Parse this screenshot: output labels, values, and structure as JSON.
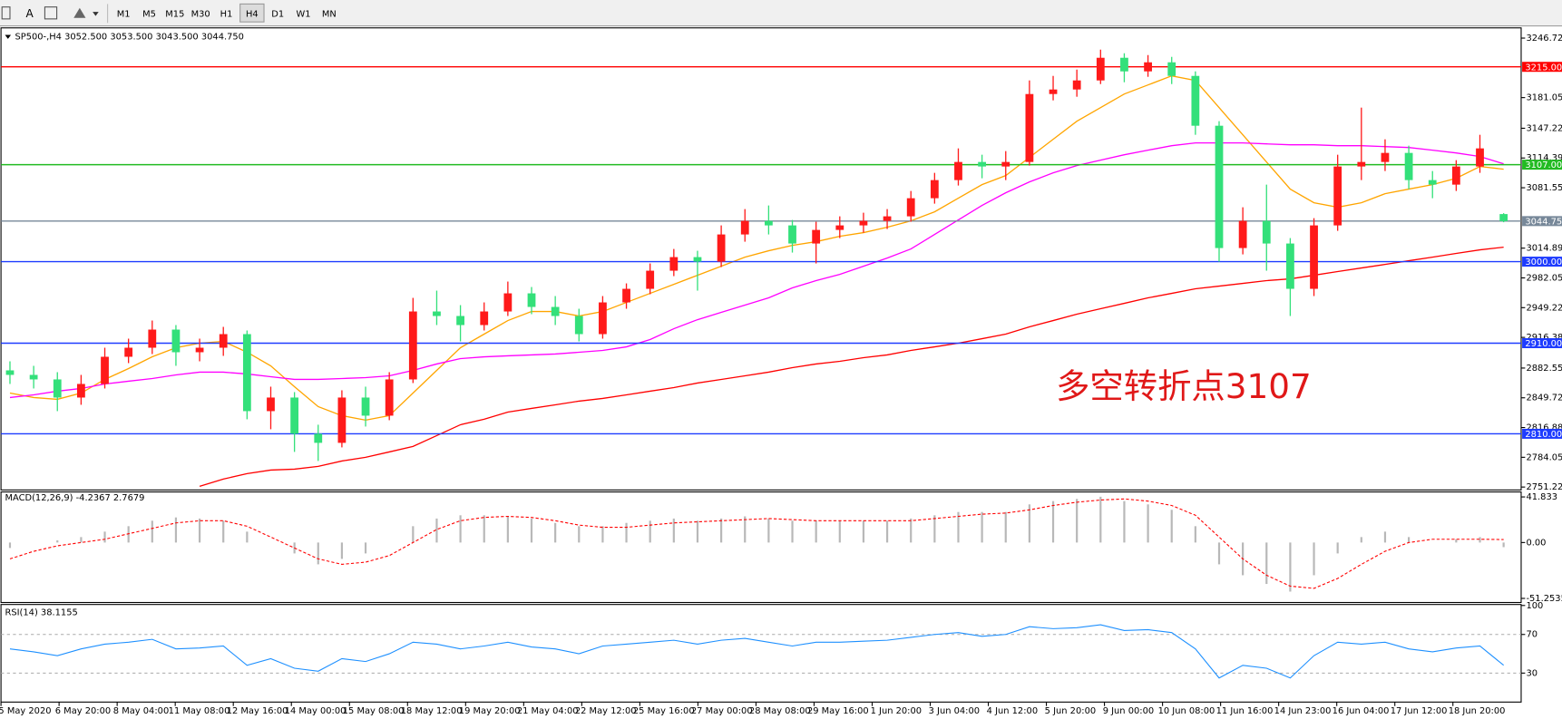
{
  "toolbar": {
    "timeframes": [
      "M1",
      "M5",
      "M15",
      "M30",
      "H1",
      "H4",
      "D1",
      "W1",
      "MN"
    ]
  },
  "chart_data": [
    {
      "type": "candlestick",
      "title": "SP500-,H4  3052.500 3053.500 3043.500 3044.750",
      "annotation": "多空转折点3107",
      "up_color": "#ff1a1a",
      "down_color": "#33e07a",
      "open": [
        2880,
        2875,
        2870,
        2850,
        2865,
        2895,
        2905,
        2925,
        2900,
        2905,
        2920,
        2835,
        2850,
        2810,
        2800,
        2850,
        2830,
        2870,
        2945,
        2940,
        2930,
        2945,
        2965,
        2950,
        2940,
        2920,
        2955,
        2970,
        2990,
        3005,
        3000,
        3030,
        3045,
        3040,
        3020,
        3035,
        3040,
        3045,
        3050,
        3070,
        3090,
        3110,
        3105,
        3110,
        3185,
        3190,
        3200,
        3225,
        3210,
        3220,
        3205,
        3150,
        3015,
        3045,
        3020,
        2970,
        3040,
        3105,
        3110,
        3120,
        3090,
        3085,
        3105,
        3052.5
      ],
      "high": [
        2890,
        2885,
        2878,
        2875,
        2905,
        2915,
        2935,
        2930,
        2915,
        2928,
        2924,
        2862,
        2856,
        2820,
        2858,
        2862,
        2878,
        2960,
        2968,
        2952,
        2955,
        2978,
        2972,
        2962,
        2948,
        2962,
        2976,
        2998,
        3014,
        3012,
        3040,
        3058,
        3062,
        3046,
        3044,
        3050,
        3054,
        3058,
        3078,
        3098,
        3125,
        3118,
        3122,
        3200,
        3205,
        3212,
        3234,
        3230,
        3228,
        3226,
        3210,
        3155,
        3060,
        3085,
        3026,
        3048,
        3118,
        3170,
        3135,
        3128,
        3100,
        3112,
        3140,
        3053.5
      ],
      "low": [
        2865,
        2860,
        2835,
        2842,
        2860,
        2888,
        2898,
        2885,
        2890,
        2896,
        2826,
        2815,
        2790,
        2780,
        2795,
        2818,
        2825,
        2866,
        2930,
        2912,
        2924,
        2940,
        2942,
        2930,
        2912,
        2915,
        2948,
        2964,
        2984,
        2968,
        2994,
        3022,
        3030,
        3010,
        2998,
        3026,
        3032,
        3036,
        3044,
        3064,
        3084,
        3092,
        3090,
        3106,
        3178,
        3182,
        3196,
        3198,
        3204,
        3196,
        3140,
        3000,
        3008,
        2990,
        2940,
        2962,
        3034,
        3090,
        3100,
        3080,
        3070,
        3078,
        3098,
        3043.5
      ],
      "close": [
        2875,
        2870,
        2850,
        2865,
        2895,
        2905,
        2925,
        2900,
        2905,
        2920,
        2835,
        2850,
        2810,
        2800,
        2850,
        2830,
        2870,
        2945,
        2940,
        2930,
        2945,
        2965,
        2950,
        2940,
        2920,
        2955,
        2970,
        2990,
        3005,
        3000,
        3030,
        3045,
        3040,
        3020,
        3035,
        3040,
        3045,
        3050,
        3070,
        3090,
        3110,
        3105,
        3110,
        3185,
        3190,
        3200,
        3225,
        3210,
        3220,
        3205,
        3150,
        3015,
        3045,
        3020,
        2970,
        3040,
        3105,
        3110,
        3120,
        3090,
        3085,
        3105,
        3125,
        3044.75
      ],
      "moving_averages": [
        {
          "color": "#ffa500",
          "values": [
            2855,
            2850,
            2848,
            2855,
            2870,
            2882,
            2895,
            2905,
            2910,
            2912,
            2900,
            2885,
            2862,
            2840,
            2830,
            2825,
            2830,
            2855,
            2880,
            2905,
            2920,
            2935,
            2945,
            2945,
            2940,
            2945,
            2955,
            2965,
            2975,
            2985,
            2995,
            3005,
            3012,
            3018,
            3022,
            3028,
            3032,
            3038,
            3045,
            3055,
            3070,
            3085,
            3095,
            3115,
            3135,
            3155,
            3170,
            3185,
            3195,
            3205,
            3200,
            3170,
            3140,
            3110,
            3080,
            3065,
            3060,
            3065,
            3075,
            3080,
            3085,
            3092,
            3105,
            3102
          ]
        },
        {
          "color": "#ff00ff",
          "values": [
            2850,
            2853,
            2857,
            2860,
            2865,
            2868,
            2871,
            2875,
            2878,
            2878,
            2876,
            2873,
            2870,
            2870,
            2871,
            2872,
            2874,
            2880,
            2887,
            2893,
            2895,
            2896,
            2897,
            2898,
            2900,
            2902,
            2906,
            2914,
            2926,
            2936,
            2944,
            2952,
            2960,
            2971,
            2979,
            2986,
            2995,
            3004,
            3014,
            3030,
            3046,
            3062,
            3076,
            3088,
            3098,
            3106,
            3112,
            3118,
            3123,
            3128,
            3131,
            3131,
            3131,
            3130,
            3129,
            3129,
            3128,
            3128,
            3127,
            3126,
            3123,
            3120,
            3116,
            3108
          ]
        },
        {
          "color": "#ff0000",
          "values": [
            null,
            null,
            null,
            null,
            null,
            null,
            null,
            null,
            2752,
            2760,
            2766,
            2770,
            2771,
            2774,
            2780,
            2784,
            2790,
            2796,
            2808,
            2820,
            2826,
            2834,
            2838,
            2842,
            2846,
            2849,
            2853,
            2857,
            2861,
            2866,
            2870,
            2874,
            2878,
            2883,
            2887,
            2890,
            2894,
            2897,
            2902,
            2906,
            2910,
            2915,
            2920,
            2928,
            2935,
            2942,
            2948,
            2954,
            2960,
            2965,
            2970,
            2973,
            2976,
            2979,
            2981,
            2985,
            2989,
            2993,
            2997,
            3001,
            3005,
            3009,
            3013,
            3016
          ]
        }
      ],
      "levels": [
        {
          "value": 3215,
          "label": "3215.000",
          "color": "#ff0000"
        },
        {
          "value": 3107,
          "label": "3107.000",
          "color": "#22bb22"
        },
        {
          "value": 3044.75,
          "label": "3044.750",
          "color": "#778899"
        },
        {
          "value": 3000,
          "label": "3000.000",
          "color": "#1e3cff"
        },
        {
          "value": 2910,
          "label": "2910.000",
          "color": "#1e3cff"
        },
        {
          "value": 2810,
          "label": "2810.000",
          "color": "#1e3cff"
        }
      ],
      "ylim": [
        2748,
        3258
      ],
      "yticks": [
        3246.725,
        3181.055,
        3147.225,
        {
          "value": 3114.39,
          "label": "3114.390"
        },
        3081.555,
        {
          "value": 3014.89,
          "label": "3014.890"
        },
        2982.055,
        {
          "value": 2949.22,
          "label": "2949.220"
        },
        2916.385,
        2882.555,
        {
          "value": 2849.72,
          "label": "2849.720"
        },
        2816.885,
        {
          "value": 2784.05,
          "label": "2784.050"
        },
        2751.225
      ],
      "x_labels": [
        "5 May 2020",
        "6 May 20:00",
        "8 May 04:00",
        "11 May 08:00",
        "12 May 16:00",
        "14 May 00:00",
        "15 May 08:00",
        "18 May 12:00",
        "19 May 20:00",
        "21 May 04:00",
        "22 May 12:00",
        "25 May 16:00",
        "27 May 00:00",
        "28 May 08:00",
        "29 May 16:00",
        "1 Jun 20:00",
        "3 Jun 04:00",
        "4 Jun 12:00",
        "5 Jun 20:00",
        "9 Jun 00:00",
        "10 Jun 08:00",
        "11 Jun 16:00",
        "14 Jun 23:00",
        "16 Jun 04:00",
        "17 Jun 12:00",
        "18 Jun 20:00"
      ]
    },
    {
      "type": "macd",
      "title": "MACD(12,26,9) -4.2367 2.7679",
      "histogram_color": "#b8b8b8",
      "signal_color": "#ff0000",
      "histogram": [
        -5,
        0,
        2,
        5,
        10,
        15,
        20,
        23,
        22,
        20,
        10,
        0,
        -10,
        -20,
        -15,
        -10,
        0,
        15,
        22,
        25,
        25,
        24,
        22,
        18,
        15,
        15,
        18,
        20,
        22,
        20,
        22,
        24,
        22,
        20,
        20,
        20,
        20,
        20,
        22,
        25,
        28,
        28,
        28,
        35,
        38,
        40,
        42,
        38,
        35,
        30,
        15,
        -20,
        -30,
        -38,
        -45,
        -30,
        -10,
        5,
        10,
        5,
        0,
        3,
        5,
        -4.2367
      ],
      "signal": [
        -15,
        -8,
        -3,
        0,
        3,
        8,
        13,
        18,
        20,
        20,
        15,
        5,
        -5,
        -15,
        -20,
        -18,
        -12,
        0,
        12,
        20,
        23,
        24,
        23,
        20,
        16,
        14,
        14,
        16,
        18,
        19,
        20,
        21,
        22,
        21,
        20,
        20,
        20,
        20,
        20,
        22,
        24,
        26,
        27,
        30,
        34,
        37,
        39,
        40,
        38,
        34,
        25,
        5,
        -15,
        -30,
        -40,
        -42,
        -33,
        -20,
        -8,
        0,
        3,
        3,
        3,
        2.7679
      ],
      "ylim": [
        -55,
        46.4
      ],
      "yticks": [
        41.833,
        {
          "value": 0,
          "label": "0.00"
        },
        -51.2535
      ]
    },
    {
      "type": "line",
      "title": "RSI(14) 38.1155",
      "color": "#1e90ff",
      "values": [
        55,
        52,
        48,
        55,
        60,
        62,
        65,
        55,
        56,
        58,
        38,
        45,
        35,
        32,
        45,
        42,
        50,
        62,
        60,
        55,
        58,
        62,
        57,
        55,
        50,
        58,
        60,
        62,
        64,
        60,
        64,
        66,
        62,
        58,
        62,
        62,
        63,
        64,
        67,
        70,
        72,
        68,
        70,
        78,
        76,
        77,
        80,
        74,
        75,
        72,
        55,
        25,
        38,
        35,
        25,
        48,
        62,
        60,
        62,
        55,
        52,
        56,
        58,
        38.1155
      ],
      "ylim": [
        0,
        100
      ],
      "yticks": [
        100,
        70,
        30
      ]
    }
  ]
}
